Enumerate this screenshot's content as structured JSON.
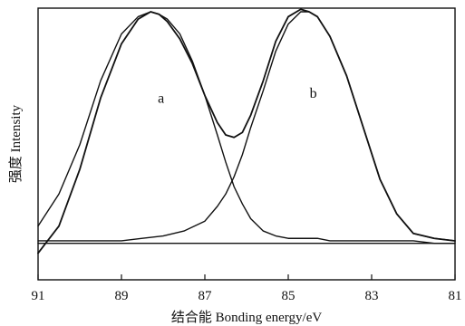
{
  "chart_data": {
    "type": "line",
    "title": "",
    "xlabel": "结合能 Bonding energy/eV",
    "ylabel": "强度 Intensity",
    "xlim": [
      91,
      81
    ],
    "x_reversed": true,
    "ylim": [
      0,
      1
    ],
    "y_ticks_shown": false,
    "grid": false,
    "x_ticks": [
      91,
      89,
      87,
      85,
      83,
      81
    ],
    "x_tick_labels": [
      "91",
      "89",
      "87",
      "85",
      "83",
      "81"
    ],
    "curve_labels": [
      {
        "text": "a",
        "x": 88.05,
        "y": 0.63
      },
      {
        "text": "b",
        "x": 84.4,
        "y": 0.65
      }
    ],
    "series": [
      {
        "x": [
          91,
          90.5,
          90,
          89.5,
          89,
          88.6,
          88.3,
          88.1,
          87.9,
          87.6,
          87.3,
          87,
          86.7,
          86.5,
          86.3,
          86.1,
          85.9,
          85.6,
          85.3,
          85,
          84.7,
          84.5,
          84.3,
          84,
          83.6,
          83.2,
          82.8,
          82.4,
          82,
          81.5,
          81
        ],
        "values": [
          0.02,
          0.13,
          0.36,
          0.65,
          0.87,
          0.97,
          1.0,
          0.99,
          0.96,
          0.89,
          0.79,
          0.66,
          0.55,
          0.5,
          0.49,
          0.51,
          0.58,
          0.72,
          0.88,
          0.98,
          1.01,
          1.0,
          0.98,
          0.9,
          0.74,
          0.53,
          0.32,
          0.18,
          0.1,
          0.08,
          0.07
        ]
      },
      {
        "x": [
          91,
          90.5,
          90,
          89.5,
          89,
          88.6,
          88.3,
          88.1,
          87.9,
          87.6,
          87.3,
          87,
          86.7,
          86.5,
          86.3,
          86.1,
          85.9,
          85.6,
          85.3,
          85,
          84.7,
          84.5,
          84.3,
          84,
          83.6,
          83.2,
          82.8,
          82.4,
          82,
          81.5,
          81
        ],
        "values": [
          0.13,
          0.26,
          0.46,
          0.72,
          0.91,
          0.98,
          1.0,
          0.99,
          0.97,
          0.91,
          0.8,
          0.66,
          0.5,
          0.39,
          0.29,
          0.22,
          0.16,
          0.11,
          0.09,
          0.08,
          0.08,
          0.08,
          0.08,
          0.07,
          0.07,
          0.07,
          0.07,
          0.07,
          0.07,
          0.06,
          0.06
        ]
      },
      {
        "x": [
          91,
          90.5,
          90,
          89.5,
          89,
          88.5,
          88,
          87.5,
          87,
          86.7,
          86.5,
          86.3,
          86.1,
          85.9,
          85.6,
          85.3,
          85,
          84.7,
          84.5,
          84.3,
          84,
          83.6,
          83.2,
          82.8,
          82.4,
          82,
          81.5,
          81
        ],
        "values": [
          0.07,
          0.07,
          0.07,
          0.07,
          0.07,
          0.08,
          0.09,
          0.11,
          0.15,
          0.21,
          0.26,
          0.33,
          0.42,
          0.53,
          0.68,
          0.84,
          0.95,
          1.0,
          1.0,
          0.98,
          0.9,
          0.74,
          0.53,
          0.32,
          0.18,
          0.1,
          0.08,
          0.07
        ]
      },
      {
        "x": [
          91,
          89,
          87,
          85,
          83,
          81
        ],
        "values": [
          0.06,
          0.06,
          0.06,
          0.06,
          0.06,
          0.06
        ]
      }
    ]
  }
}
